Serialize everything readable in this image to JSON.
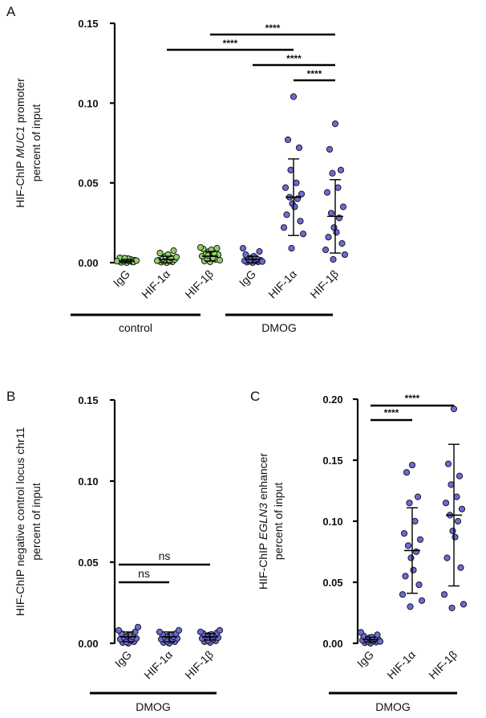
{
  "colors": {
    "green": "#8fd16a",
    "purple": "#6b6bdc",
    "stroke": "#1a1a1a"
  },
  "chart_data": [
    {
      "id": "A",
      "type": "scatter",
      "panel": "A",
      "ylabel_pre": "HIF-ChIP ",
      "ylabel_gene": "MUC1",
      "ylabel_post": " promoter",
      "ylabel_line2": "percent of input",
      "ylim": [
        0,
        0.15
      ],
      "yticks": [
        "0.00",
        "0.05",
        "0.10",
        "0.15"
      ],
      "ytick_values": [
        0,
        0.05,
        0.1,
        0.15
      ],
      "categories": [
        "IgG",
        "HIF-1α",
        "HIF-1β",
        "IgG",
        "HIF-1α",
        "HIF-1β"
      ],
      "colors": [
        "green",
        "green",
        "green",
        "purple",
        "purple",
        "purple"
      ],
      "groups": [
        {
          "label": "control",
          "from": 0,
          "to": 2
        },
        {
          "label": "DMOG",
          "from": 3,
          "to": 5
        }
      ],
      "means": [
        0.001,
        0.002,
        0.004,
        0.002,
        0.041,
        0.029
      ],
      "sd": [
        0.001,
        0.002,
        0.003,
        0.002,
        0.024,
        0.023
      ],
      "points": [
        [
          0.0,
          0.0002,
          0.0005,
          0.0008,
          0.001,
          0.0012,
          0.0015,
          0.0018,
          0.002,
          0.0022,
          0.0025,
          0.003,
          0.0004,
          0.0009,
          0.0013,
          0.0028
        ],
        [
          0.0,
          0.0003,
          0.0005,
          0.0008,
          0.001,
          0.0015,
          0.002,
          0.0025,
          0.003,
          0.004,
          0.005,
          0.006,
          0.0075,
          0.0012,
          0.0035
        ],
        [
          0.0005,
          0.001,
          0.002,
          0.0025,
          0.003,
          0.004,
          0.005,
          0.0055,
          0.006,
          0.007,
          0.008,
          0.0085,
          0.009,
          0.0095,
          0.0015,
          0.0045
        ],
        [
          0.0,
          0.0003,
          0.0005,
          0.0008,
          0.001,
          0.0012,
          0.0015,
          0.002,
          0.0025,
          0.003,
          0.004,
          0.005,
          0.007,
          0.009,
          0.0007,
          0.0018
        ],
        [
          0.104,
          0.077,
          0.072,
          0.058,
          0.05,
          0.047,
          0.043,
          0.041,
          0.04,
          0.037,
          0.035,
          0.03,
          0.026,
          0.022,
          0.018,
          0.009
        ],
        [
          0.087,
          0.071,
          0.058,
          0.056,
          0.047,
          0.044,
          0.035,
          0.031,
          0.028,
          0.022,
          0.019,
          0.016,
          0.012,
          0.008,
          0.005,
          0.002
        ]
      ],
      "comparisons": [
        {
          "from": 4,
          "to": 5,
          "level": 0,
          "label": "****"
        },
        {
          "from": 3,
          "to": 5,
          "level": 1,
          "label": "****"
        },
        {
          "from": 1,
          "to": 4,
          "level": 2,
          "label": "****"
        },
        {
          "from": 2,
          "to": 5,
          "level": 3,
          "label": "****"
        }
      ]
    },
    {
      "id": "B",
      "type": "scatter",
      "panel": "B",
      "ylabel_pre": "HIF-ChIP negative control locus chr11",
      "ylabel_gene": "",
      "ylabel_post": "",
      "ylabel_line2": "percent of input",
      "ylim": [
        0,
        0.15
      ],
      "yticks": [
        "0.00",
        "0.05",
        "0.10",
        "0.15"
      ],
      "ytick_values": [
        0,
        0.05,
        0.1,
        0.15
      ],
      "categories": [
        "IgG",
        "HIF-1α",
        "HIF-1β"
      ],
      "colors": [
        "purple",
        "purple",
        "purple"
      ],
      "groups": [
        {
          "label": "DMOG",
          "from": 0,
          "to": 2
        }
      ],
      "means": [
        0.004,
        0.004,
        0.004
      ],
      "sd": [
        0.003,
        0.003,
        0.002
      ],
      "points": [
        [
          0.0,
          0.0005,
          0.001,
          0.0015,
          0.002,
          0.0025,
          0.003,
          0.0035,
          0.004,
          0.0045,
          0.005,
          0.006,
          0.007,
          0.008,
          0.01,
          0.0008
        ],
        [
          0.0,
          0.0005,
          0.001,
          0.0015,
          0.002,
          0.0025,
          0.003,
          0.0035,
          0.004,
          0.0045,
          0.005,
          0.0055,
          0.006,
          0.007,
          0.008,
          0.0012
        ],
        [
          0.0005,
          0.001,
          0.0015,
          0.002,
          0.0025,
          0.003,
          0.0035,
          0.004,
          0.0045,
          0.005,
          0.0055,
          0.006,
          0.0065,
          0.007,
          0.008,
          0.0018
        ]
      ],
      "comparisons": [
        {
          "from": 0,
          "to": 1,
          "level": 0,
          "label": "ns"
        },
        {
          "from": 0,
          "to": 2,
          "level": 1,
          "label": "ns"
        }
      ]
    },
    {
      "id": "C",
      "type": "scatter",
      "panel": "C",
      "ylabel_pre": "HIF-ChIP ",
      "ylabel_gene": "EGLN3",
      "ylabel_post": " enhancer",
      "ylabel_line2": "percent of input",
      "ylim": [
        0,
        0.2
      ],
      "yticks": [
        "0.00",
        "0.05",
        "0.10",
        "0.15",
        "0.20"
      ],
      "ytick_values": [
        0,
        0.05,
        0.1,
        0.15,
        0.2
      ],
      "categories": [
        "IgG",
        "HIF-1α",
        "HIF-1β"
      ],
      "colors": [
        "purple",
        "purple",
        "purple"
      ],
      "groups": [
        {
          "label": "DMOG",
          "from": 0,
          "to": 2
        }
      ],
      "means": [
        0.003,
        0.076,
        0.105
      ],
      "sd": [
        0.002,
        0.035,
        0.058
      ],
      "points": [
        [
          0.0,
          0.0005,
          0.001,
          0.0015,
          0.002,
          0.0025,
          0.003,
          0.0035,
          0.004,
          0.0045,
          0.005,
          0.006,
          0.007,
          0.009,
          0.0015
        ],
        [
          0.146,
          0.14,
          0.12,
          0.115,
          0.1,
          0.09,
          0.085,
          0.08,
          0.075,
          0.07,
          0.06,
          0.055,
          0.048,
          0.04,
          0.035,
          0.03
        ],
        [
          0.192,
          0.147,
          0.137,
          0.13,
          0.12,
          0.115,
          0.11,
          0.105,
          0.1,
          0.092,
          0.087,
          0.07,
          0.062,
          0.04,
          0.032,
          0.029
        ]
      ],
      "comparisons": [
        {
          "from": 0,
          "to": 1,
          "level": 0,
          "label": "****"
        },
        {
          "from": 0,
          "to": 2,
          "level": 1,
          "label": "****"
        }
      ]
    }
  ]
}
